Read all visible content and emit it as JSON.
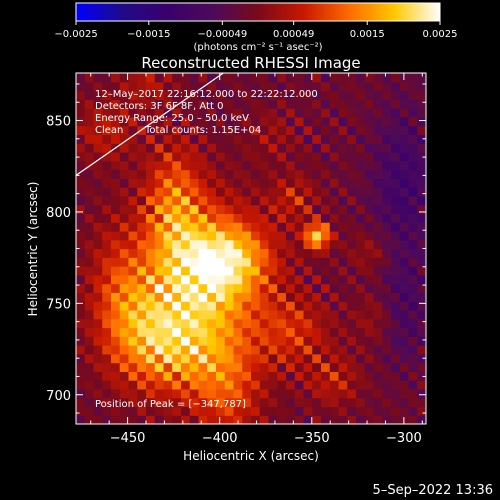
{
  "chart_data": {
    "type": "heatmap",
    "title": "Reconstructed RHESSI Image",
    "xlabel": "Heliocentric X (arcsec)",
    "ylabel": "Heliocentric Y (arcsec)",
    "xlim": [
      -478,
      -288
    ],
    "ylim": [
      684,
      876
    ],
    "xticks": [
      -450,
      -400,
      -350,
      -300
    ],
    "yticks": [
      700,
      750,
      800,
      850
    ],
    "xtick_labels": [
      "−450",
      "−400",
      "−350",
      "−300"
    ],
    "ytick_labels": [
      "700",
      "750",
      "800",
      "850"
    ],
    "colorbar": {
      "range": [
        -0.0025,
        0.0025
      ],
      "ticks": [
        -0.0025,
        -0.0015,
        -0.00049,
        0.00049,
        0.0015,
        0.0025
      ],
      "tick_labels": [
        "−0.0025",
        "−0.0015",
        "−0.00049",
        "0.00049",
        "0.0015",
        "0.0025"
      ],
      "unit_label": "(photons cm⁻² s⁻¹ asec⁻²)",
      "stops": [
        "#0000ff",
        "#1f0a8c",
        "#3a006c",
        "#4c0a5a",
        "#7a0a1a",
        "#c81800",
        "#ff6a00",
        "#ffc800",
        "#ffffff"
      ]
    },
    "annotations": [
      "12–May–2017 22:16:12.000 to 22:22:12.000",
      "Detectors: 3F 6F 8F, Att 0",
      "Energy Range: 25.0 – 50.0 keV",
      "Clean",
      "Total counts: 1.15E+04"
    ],
    "peak_label": "Position of Peak = [−347,787]",
    "peak": [
      -347,
      787
    ],
    "limb_line": [
      [
        -478,
        820
      ],
      [
        -398,
        876
      ]
    ],
    "sources": [
      {
        "x": -410,
        "y": 760,
        "amp": 0.002,
        "sx": 22,
        "sy": 30
      },
      {
        "x": -393,
        "y": 775,
        "amp": 0.0013,
        "sx": 16,
        "sy": 14
      },
      {
        "x": -425,
        "y": 805,
        "amp": 0.0012,
        "sx": 11,
        "sy": 24
      },
      {
        "x": -440,
        "y": 735,
        "amp": 0.0011,
        "sx": 16,
        "sy": 20
      },
      {
        "x": -455,
        "y": 760,
        "amp": 0.0008,
        "sx": 12,
        "sy": 26
      },
      {
        "x": -420,
        "y": 720,
        "amp": 0.0008,
        "sx": 20,
        "sy": 16
      },
      {
        "x": -395,
        "y": 700,
        "amp": 0.0009,
        "sx": 13,
        "sy": 20
      },
      {
        "x": -347,
        "y": 787,
        "amp": 0.0022,
        "sx": 5,
        "sy": 5
      },
      {
        "x": -360,
        "y": 735,
        "amp": 0.0009,
        "sx": 14,
        "sy": 14
      },
      {
        "x": -338,
        "y": 708,
        "amp": 0.0007,
        "sx": 10,
        "sy": 10
      },
      {
        "x": -462,
        "y": 845,
        "amp": 0.0007,
        "sx": 12,
        "sy": 12
      },
      {
        "x": -440,
        "y": 870,
        "amp": 0.0006,
        "sx": 10,
        "sy": 8
      },
      {
        "x": -372,
        "y": 842,
        "amp": 0.0004,
        "sx": 10,
        "sy": 10
      },
      {
        "x": -360,
        "y": 808,
        "amp": 0.0007,
        "sx": 9,
        "sy": 9
      },
      {
        "x": -318,
        "y": 778,
        "amp": 0.0005,
        "sx": 8,
        "sy": 8
      },
      {
        "x": -315,
        "y": 742,
        "amp": 0.0005,
        "sx": 8,
        "sy": 10
      },
      {
        "x": -300,
        "y": 815,
        "amp": -0.0008,
        "sx": 12,
        "sy": 30
      },
      {
        "x": -300,
        "y": 745,
        "amp": -0.0006,
        "sx": 10,
        "sy": 20
      }
    ]
  },
  "footer": {
    "date": "5–Sep–2022 13:36"
  }
}
